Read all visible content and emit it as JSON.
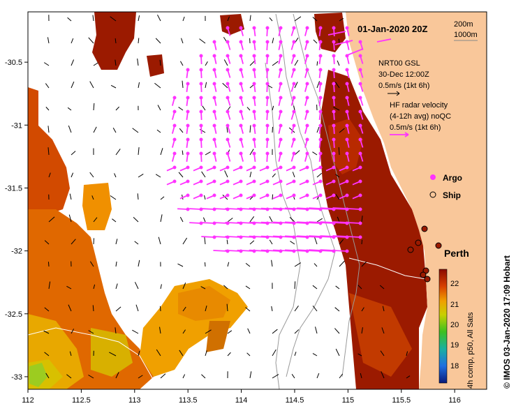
{
  "map": {
    "date_label": "01-Jan-2020 20Z",
    "depth_legend": [
      "200m",
      "1000m"
    ],
    "lon_ticks": [
      "112",
      "112.5",
      "113",
      "113.5",
      "114",
      "114.5",
      "115",
      "115.5",
      "116"
    ],
    "lat_ticks": [
      "-30.5",
      "-31",
      "-31.5",
      "-32",
      "-32.5",
      "-33"
    ],
    "lon_range": [
      112,
      116.3
    ],
    "lat_range": [
      -33.1,
      -30.1
    ],
    "nrt_legend": [
      "NRT00 GSL",
      "30-Dec 12:00Z",
      "0.5m/s (1kt 6h)"
    ],
    "hf_legend": [
      "HF radar velocity",
      "(4-12h avg) noQC",
      "0.5m/s (1kt 6h)"
    ],
    "markers": {
      "argo": "Argo",
      "ship": "Ship"
    },
    "city": "Perth",
    "colorbar": {
      "ticks": [
        "22",
        "21",
        "20",
        "19",
        "18"
      ],
      "title": "4h comp, p50, All Sats",
      "range": [
        17.5,
        22.8
      ]
    },
    "credit": "© IMOS 03-Jan-2020 17:09 Hobart",
    "colors": {
      "land": "#f9c79a",
      "hf_vector": "#ff33ff",
      "isobath": "#999999",
      "sst_warm": "#9b1a00",
      "sst_mid": "#e8a000",
      "sst_cool": "#8ccf20"
    }
  }
}
